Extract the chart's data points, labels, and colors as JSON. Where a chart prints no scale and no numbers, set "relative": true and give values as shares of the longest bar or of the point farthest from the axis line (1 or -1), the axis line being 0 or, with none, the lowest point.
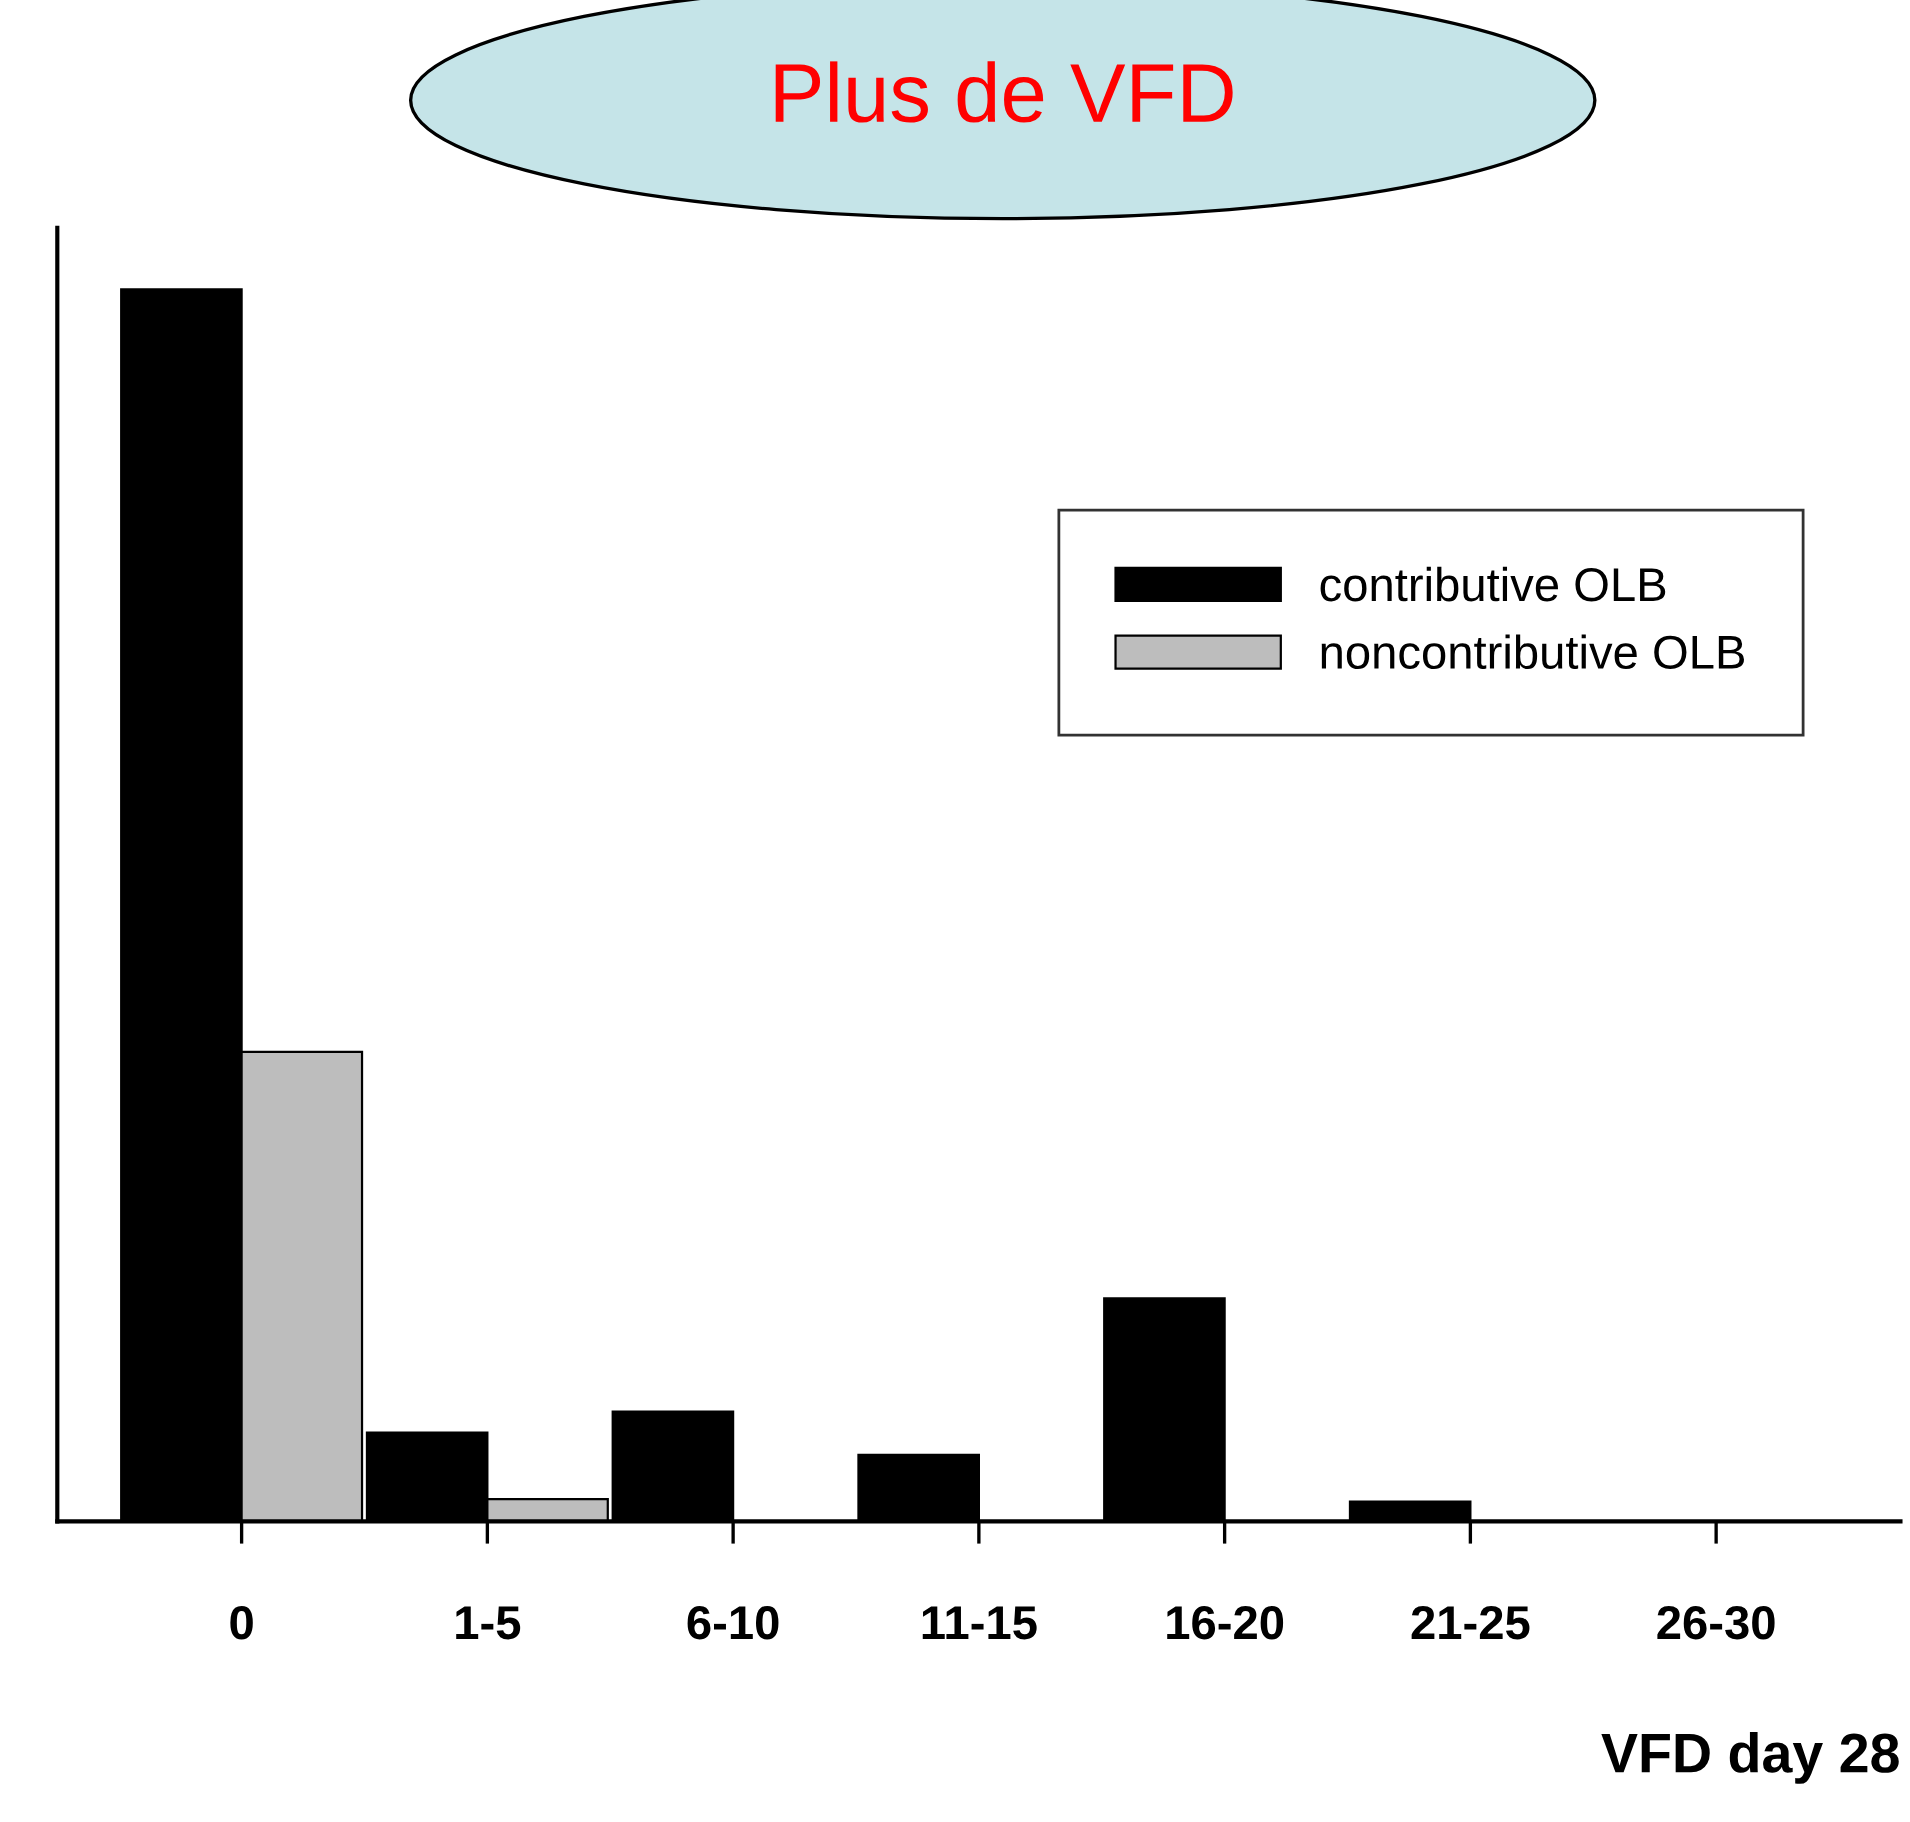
{
  "chart_data": {
    "type": "bar",
    "title": "Plus de VFD",
    "xlabel": "VFD day 28",
    "relative": true,
    "categories": [
      "0",
      "1-5",
      "6-10",
      "11-15",
      "16-20",
      "21-25",
      "26-30"
    ],
    "series": [
      {
        "name": "contributive OLB",
        "color": "#000000",
        "values": [
          1.0,
          0.072,
          0.089,
          0.054,
          0.181,
          0.016,
          0
        ]
      },
      {
        "name": "noncontributive OLB",
        "color": "#bdbdbd",
        "values": [
          0.381,
          0.018,
          0,
          0,
          0,
          0,
          0
        ]
      }
    ],
    "legend": "top right",
    "grid": false
  }
}
